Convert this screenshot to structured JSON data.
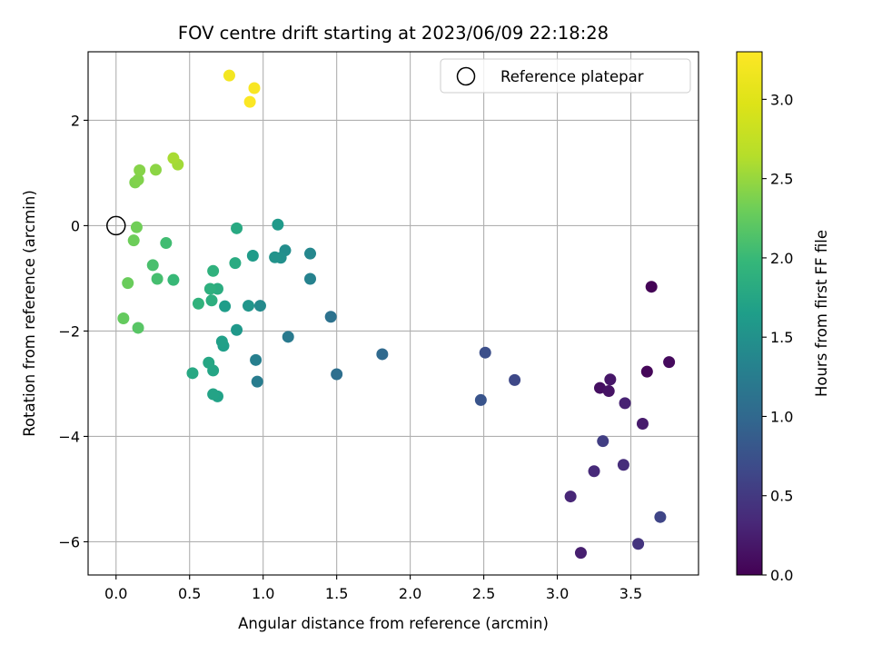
{
  "chart_data": {
    "type": "scatter",
    "title": "FOV centre drift starting at 2023/06/09 22:18:28",
    "xlabel": "Angular distance from reference (arcmin)",
    "ylabel": "Rotation from reference (arcmin)",
    "xlim": [
      -0.19,
      3.96
    ],
    "ylim": [
      -6.63,
      3.3
    ],
    "x_ticks": [
      0.0,
      0.5,
      1.0,
      1.5,
      2.0,
      2.5,
      3.0,
      3.5
    ],
    "x_tick_labels": [
      "0.0",
      "0.5",
      "1.0",
      "1.5",
      "2.0",
      "2.5",
      "3.0",
      "3.5"
    ],
    "y_ticks": [
      2,
      0,
      -2,
      -4,
      -6
    ],
    "y_tick_labels": [
      "2",
      "0",
      "−2",
      "−4",
      "−6"
    ],
    "grid": true,
    "legend": {
      "position": "top-right",
      "entries": [
        "Reference platepar"
      ]
    },
    "reference_point": {
      "x": 0.0,
      "y": 0.0
    },
    "colorbar": {
      "label": "Hours from first FF file",
      "range": [
        0.0,
        3.3
      ],
      "colormap": "viridis",
      "ticks": [
        0.0,
        0.5,
        1.0,
        1.5,
        2.0,
        2.5,
        3.0
      ],
      "tick_labels": [
        "0.0",
        "0.5",
        "1.0",
        "1.5",
        "2.0",
        "2.5",
        "3.0"
      ]
    },
    "points": [
      {
        "x": 3.64,
        "y": -1.16,
        "hours": 0.02
      },
      {
        "x": 3.61,
        "y": -2.77,
        "hours": 0.05
      },
      {
        "x": 3.76,
        "y": -2.59,
        "hours": 0.08
      },
      {
        "x": 3.29,
        "y": -3.08,
        "hours": 0.12
      },
      {
        "x": 3.35,
        "y": -3.14,
        "hours": 0.15
      },
      {
        "x": 3.36,
        "y": -2.92,
        "hours": 0.18
      },
      {
        "x": 3.58,
        "y": -3.76,
        "hours": 0.22
      },
      {
        "x": 3.16,
        "y": -6.21,
        "hours": 0.25
      },
      {
        "x": 3.46,
        "y": -3.37,
        "hours": 0.28
      },
      {
        "x": 3.09,
        "y": -5.14,
        "hours": 0.32
      },
      {
        "x": 3.25,
        "y": -4.66,
        "hours": 0.35
      },
      {
        "x": 3.45,
        "y": -4.54,
        "hours": 0.38
      },
      {
        "x": 3.55,
        "y": -6.04,
        "hours": 0.45
      },
      {
        "x": 3.31,
        "y": -4.09,
        "hours": 0.55
      },
      {
        "x": 3.7,
        "y": -5.53,
        "hours": 0.62
      },
      {
        "x": 2.71,
        "y": -2.93,
        "hours": 0.65
      },
      {
        "x": 2.51,
        "y": -2.41,
        "hours": 0.72
      },
      {
        "x": 2.48,
        "y": -3.31,
        "hours": 0.78
      },
      {
        "x": 1.81,
        "y": -2.44,
        "hours": 1.02
      },
      {
        "x": 1.5,
        "y": -2.82,
        "hours": 1.08
      },
      {
        "x": 1.46,
        "y": -1.73,
        "hours": 1.12
      },
      {
        "x": 1.17,
        "y": -2.11,
        "hours": 1.22
      },
      {
        "x": 0.96,
        "y": -2.96,
        "hours": 1.25
      },
      {
        "x": 0.95,
        "y": -2.55,
        "hours": 1.28
      },
      {
        "x": 1.32,
        "y": -1.01,
        "hours": 1.32
      },
      {
        "x": 1.32,
        "y": -0.53,
        "hours": 1.38
      },
      {
        "x": 0.98,
        "y": -1.52,
        "hours": 1.42
      },
      {
        "x": 1.15,
        "y": -0.47,
        "hours": 1.45
      },
      {
        "x": 1.12,
        "y": -0.61,
        "hours": 1.48
      },
      {
        "x": 1.08,
        "y": -0.6,
        "hours": 1.52
      },
      {
        "x": 0.9,
        "y": -1.52,
        "hours": 1.55
      },
      {
        "x": 0.82,
        "y": -1.98,
        "hours": 1.58
      },
      {
        "x": 1.1,
        "y": 0.02,
        "hours": 1.6
      },
      {
        "x": 0.93,
        "y": -0.57,
        "hours": 1.62
      },
      {
        "x": 0.74,
        "y": -1.53,
        "hours": 1.64
      },
      {
        "x": 0.73,
        "y": -2.28,
        "hours": 1.66
      },
      {
        "x": 0.72,
        "y": -2.2,
        "hours": 1.68
      },
      {
        "x": 0.69,
        "y": -3.24,
        "hours": 1.7
      },
      {
        "x": 0.66,
        "y": -3.2,
        "hours": 1.72
      },
      {
        "x": 0.66,
        "y": -2.75,
        "hours": 1.74
      },
      {
        "x": 0.63,
        "y": -2.6,
        "hours": 1.76
      },
      {
        "x": 0.52,
        "y": -2.8,
        "hours": 1.78
      },
      {
        "x": 0.82,
        "y": -0.05,
        "hours": 1.8
      },
      {
        "x": 0.81,
        "y": -0.71,
        "hours": 1.82
      },
      {
        "x": 0.69,
        "y": -1.2,
        "hours": 1.84
      },
      {
        "x": 0.65,
        "y": -1.42,
        "hours": 1.86
      },
      {
        "x": 0.64,
        "y": -1.2,
        "hours": 1.88
      },
      {
        "x": 0.66,
        "y": -0.86,
        "hours": 1.9
      },
      {
        "x": 0.56,
        "y": -1.48,
        "hours": 1.92
      },
      {
        "x": 0.39,
        "y": -1.03,
        "hours": 2.0
      },
      {
        "x": 0.34,
        "y": -0.33,
        "hours": 2.05
      },
      {
        "x": 0.28,
        "y": -1.01,
        "hours": 2.08
      },
      {
        "x": 0.25,
        "y": -0.75,
        "hours": 2.1
      },
      {
        "x": 0.15,
        "y": -1.94,
        "hours": 2.18
      },
      {
        "x": 0.05,
        "y": -1.76,
        "hours": 2.25
      },
      {
        "x": 0.08,
        "y": -1.09,
        "hours": 2.28
      },
      {
        "x": 0.12,
        "y": -0.28,
        "hours": 2.3
      },
      {
        "x": 0.14,
        "y": -0.03,
        "hours": 2.32
      },
      {
        "x": 0.13,
        "y": 0.82,
        "hours": 2.38
      },
      {
        "x": 0.15,
        "y": 0.87,
        "hours": 2.4
      },
      {
        "x": 0.16,
        "y": 1.05,
        "hours": 2.42
      },
      {
        "x": 0.27,
        "y": 1.06,
        "hours": 2.45
      },
      {
        "x": 0.42,
        "y": 1.16,
        "hours": 2.55
      },
      {
        "x": 0.39,
        "y": 1.28,
        "hours": 2.58
      },
      {
        "x": 0.77,
        "y": 2.85,
        "hours": 3.2
      },
      {
        "x": 0.94,
        "y": 2.61,
        "hours": 3.25
      },
      {
        "x": 0.91,
        "y": 2.35,
        "hours": 3.28
      }
    ]
  }
}
